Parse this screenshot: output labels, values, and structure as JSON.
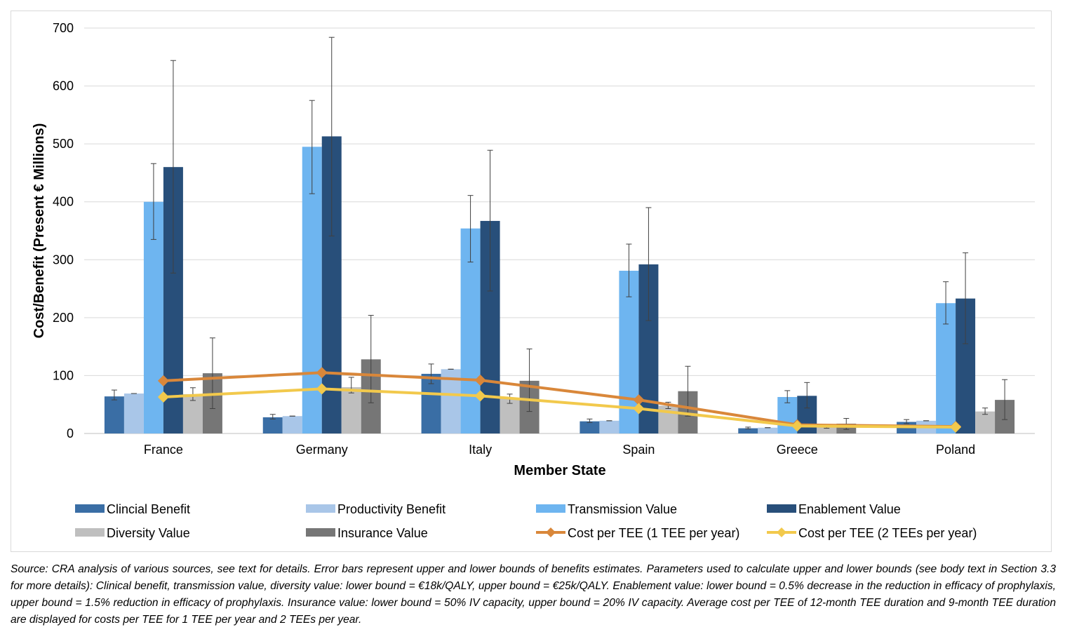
{
  "chart_data": {
    "type": "bar",
    "title": "",
    "xlabel": "Member State",
    "ylabel": "Cost/Benefit (Present € Millions)",
    "ylim": [
      0,
      700
    ],
    "yticks": [
      0,
      100,
      200,
      300,
      400,
      500,
      600,
      700
    ],
    "grid": true,
    "legend_position": "bottom",
    "categories": [
      "France",
      "Germany",
      "Italy",
      "Spain",
      "Greece",
      "Poland"
    ],
    "series": [
      {
        "name": "Clincial Benefit",
        "kind": "bar",
        "color": "#3a6ea5",
        "values": [
          64,
          28,
          103,
          21,
          9,
          20
        ],
        "lower": [
          58,
          25,
          86,
          19,
          8,
          17
        ],
        "upper": [
          75,
          33,
          120,
          25,
          11,
          24
        ]
      },
      {
        "name": "Productivity Benefit",
        "kind": "bar",
        "color": "#a9c6e8",
        "values": [
          69,
          30,
          111,
          22,
          10,
          22
        ],
        "lower": [
          69,
          30,
          111,
          22,
          10,
          22
        ],
        "upper": [
          69,
          30,
          111,
          22,
          10,
          22
        ]
      },
      {
        "name": "Transmission Value",
        "kind": "bar",
        "color": "#6eb5f0",
        "values": [
          400,
          495,
          354,
          281,
          63,
          225
        ],
        "lower": [
          335,
          414,
          296,
          236,
          53,
          189
        ],
        "upper": [
          466,
          575,
          411,
          327,
          74,
          262
        ]
      },
      {
        "name": "Enablement Value",
        "kind": "bar",
        "color": "#284f7a",
        "values": [
          460,
          513,
          367,
          292,
          65,
          233
        ],
        "lower": [
          277,
          341,
          246,
          195,
          44,
          155
        ],
        "upper": [
          644,
          684,
          489,
          390,
          88,
          312
        ]
      },
      {
        "name": "Diversity Value",
        "kind": "bar",
        "color": "#bfbfbf",
        "values": [
          68,
          80,
          60,
          48,
          11,
          38
        ],
        "lower": [
          57,
          70,
          52,
          43,
          9,
          33
        ],
        "upper": [
          79,
          97,
          68,
          54,
          12,
          44
        ]
      },
      {
        "name": "Insurance Value",
        "kind": "bar",
        "color": "#767676",
        "values": [
          104,
          128,
          91,
          73,
          17,
          58
        ],
        "lower": [
          43,
          53,
          38,
          30,
          7,
          24
        ],
        "upper": [
          165,
          204,
          146,
          116,
          26,
          93
        ]
      },
      {
        "name": "Cost per TEE (1 TEE per year)",
        "kind": "line",
        "color": "#d9873a",
        "values": [
          91,
          105,
          92,
          58,
          15,
          12
        ]
      },
      {
        "name": "Cost per TEE (2 TEEs per year)",
        "kind": "line",
        "color": "#f2c94c",
        "values": [
          63,
          77,
          65,
          43,
          13,
          11
        ]
      }
    ]
  },
  "note": "Source: CRA analysis of various sources, see text for details. Error bars represent upper and lower bounds of benefits estimates. Parameters used to calculate upper and lower bounds (see body text in Section 3.3 for more details): Clinical benefit, transmission value, diversity value: lower bound = €18k/QALY, upper bound = €25k/QALY. Enablement value: lower bound = 0.5% decrease in the reduction in efficacy of prophylaxis, upper bound = 1.5% reduction in efficacy of prophylaxis. Insurance value: lower bound = 50% IV capacity, upper bound = 20% IV capacity. Average cost per TEE of 12-month TEE duration and 9-month TEE duration are displayed for costs per TEE for 1 TEE per year and 2 TEEs per year."
}
